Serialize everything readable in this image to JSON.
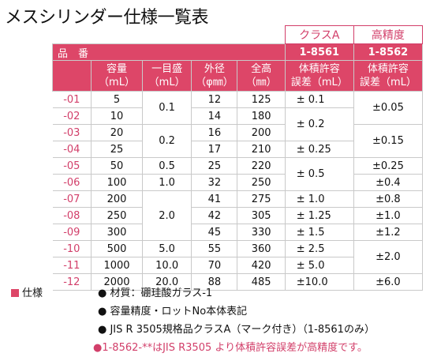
{
  "title": "メスシリンダー仕様一覧表",
  "class_headers": [
    "クラスA",
    "高精度"
  ],
  "hinban_label": "品　番",
  "product_codes": [
    "1-8561",
    "1-8562"
  ],
  "columns": [
    {
      "l1": "容量",
      "l2": "（mL）"
    },
    {
      "l1": "一目盛",
      "l2": "（mL）"
    },
    {
      "l1": "外径",
      "l2": "（φ㎜）"
    },
    {
      "l1": "全高",
      "l2": "（㎜）"
    },
    {
      "l1": "体積許容",
      "l2": "誤差（mL）"
    },
    {
      "l1": "体積許容",
      "l2": "誤差（mL）"
    }
  ],
  "rows": [
    {
      "code": "-01",
      "cap": "5",
      "grad": "0.1",
      "od": "12",
      "h": "125",
      "tolA": "±  0.1",
      "tolH": "±0.05"
    },
    {
      "code": "-02",
      "cap": "10",
      "grad": "",
      "od": "14",
      "h": "180",
      "tolA": "±  0.2",
      "tolH": ""
    },
    {
      "code": "-03",
      "cap": "20",
      "grad": "0.2",
      "od": "16",
      "h": "200",
      "tolA": "",
      "tolH": "±0.15"
    },
    {
      "code": "-04",
      "cap": "25",
      "grad": "",
      "od": "17",
      "h": "210",
      "tolA": "±  0.25",
      "tolH": ""
    },
    {
      "code": "-05",
      "cap": "50",
      "grad": "0.5",
      "od": "25",
      "h": "220",
      "tolA": "±  0.5",
      "tolH": "±0.25"
    },
    {
      "code": "-06",
      "cap": "100",
      "grad": "1.0",
      "od": "32",
      "h": "250",
      "tolA": "",
      "tolH": "±0.4"
    },
    {
      "code": "-07",
      "cap": "200",
      "grad": "2.0",
      "od": "41",
      "h": "275",
      "tolA": "±  1.0",
      "tolH": "±0.8"
    },
    {
      "code": "-08",
      "cap": "250",
      "grad": "",
      "od": "42",
      "h": "305",
      "tolA": "±  1.25",
      "tolH": "±1.0"
    },
    {
      "code": "-09",
      "cap": "300",
      "grad": "",
      "od": "45",
      "h": "330",
      "tolA": "±  1.5",
      "tolH": "±1.2"
    },
    {
      "code": "-10",
      "cap": "500",
      "grad": "5.0",
      "od": "55",
      "h": "360",
      "tolA": "±  2.5",
      "tolH": "±2.0"
    },
    {
      "code": "-11",
      "cap": "1000",
      "grad": "10.0",
      "od": "70",
      "h": "420",
      "tolA": "±  5.0",
      "tolH": ""
    },
    {
      "code": "-12",
      "cap": "2000",
      "grad": "20.0",
      "od": "88",
      "h": "485",
      "tolA": "±10.0",
      "tolH": "±6.0"
    }
  ],
  "spec_label": "仕様",
  "specs": [
    "● 材質：硼珪酸ガラス-1",
    "● 容量精度・ロットNo本体表記",
    "● JIS R 3505規格品クラスA（マーク付き）（1-8561のみ）",
    "●1-8562-**はJIS R3505 より体積許容誤差が高精度です。"
  ]
}
